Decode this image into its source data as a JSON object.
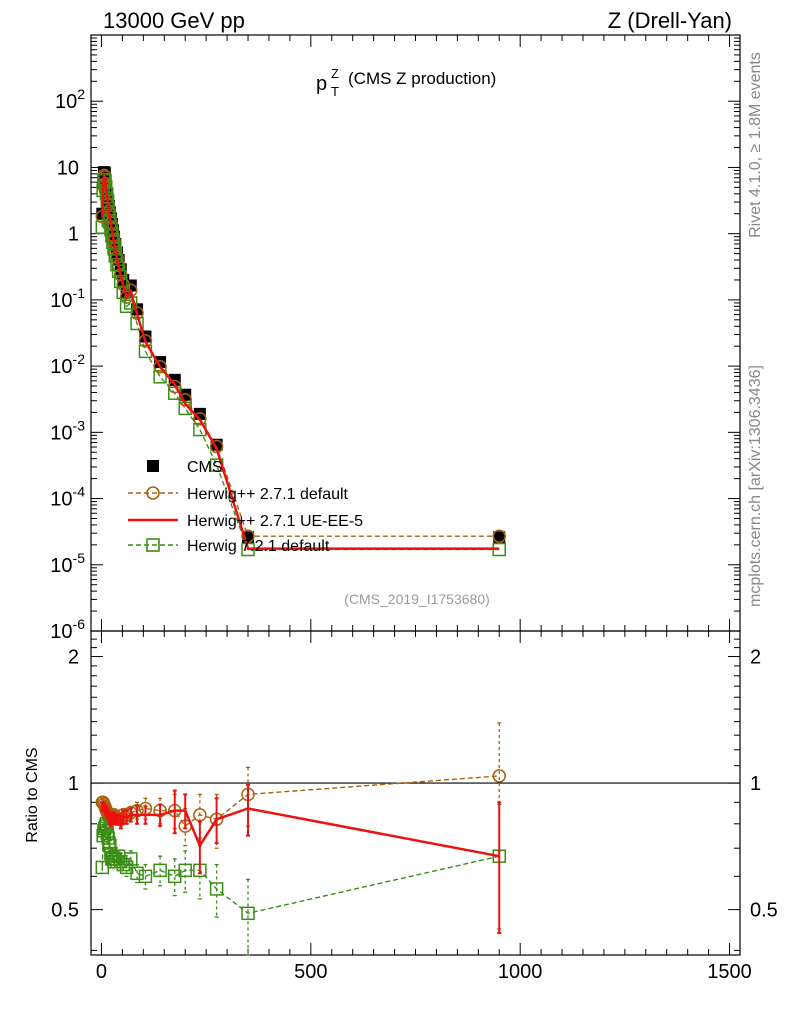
{
  "header": {
    "left_title": "13000 GeV pp",
    "right_title": "Z (Drell-Yan)"
  },
  "side_labels": {
    "rivet": "Rivet 4.1.0, ≥ 1.8M events",
    "mcplots": "mcplots.cern.ch [arXiv:1306.3436]"
  },
  "chart_data": [
    {
      "type": "scatter",
      "panel": "main",
      "title_main": "p",
      "title_sup": "Z",
      "title_sub": "T",
      "title_rest": "(CMS Z production)",
      "analysis_label": "(CMS_2019_I1753680)",
      "xscale": "linear",
      "yscale": "log",
      "xlim": [
        -25,
        1525
      ],
      "ylim": [
        1e-06,
        1000
      ],
      "y_tick_labels": [
        "10^2",
        "10",
        "1",
        "10^-1",
        "10^-2",
        "10^-3",
        "10^-4",
        "10^-5",
        "10^-6"
      ],
      "legend_position": "middle-left",
      "legend": [
        "CMS",
        "Herwig++ 2.7.1 default",
        "Herwig++ 2.7.1 UE-EE-5",
        "Herwig 7.2.1 default"
      ],
      "x": [
        2,
        4,
        6,
        8,
        10,
        12,
        14,
        16,
        18,
        20,
        22.5,
        25,
        27.5,
        30,
        33,
        37,
        41,
        46,
        52,
        60,
        70,
        85,
        105,
        140,
        175,
        200,
        235,
        275,
        350,
        950
      ],
      "series": [
        {
          "name": "CMS",
          "color": "#000000",
          "style": "filled-square",
          "values": [
            2.0,
            6.0,
            8.5,
            8.2,
            6.5,
            5.0,
            4.0,
            3.2,
            2.6,
            2.1,
            1.7,
            1.4,
            1.12,
            0.9,
            0.7,
            0.52,
            0.4,
            0.29,
            0.2,
            0.13,
            0.165,
            0.072,
            0.028,
            0.0115,
            0.0062,
            0.0037,
            0.0019,
            0.00065,
            2.6e-05,
            2.6e-05
          ]
        },
        {
          "name": "Herwig++ 2.7.1 default",
          "color": "#a8620e",
          "style": "open-circle-dashed",
          "values": [
            1.8,
            5.4,
            7.6,
            7.2,
            5.7,
            4.4,
            3.5,
            2.8,
            2.2,
            1.8,
            1.45,
            1.2,
            0.95,
            0.77,
            0.59,
            0.44,
            0.33,
            0.24,
            0.17,
            0.11,
            0.14,
            0.063,
            0.024,
            0.0098,
            0.0049,
            0.0031,
            0.0016,
            0.00061,
            2.7e-05,
            2.7e-05
          ]
        },
        {
          "name": "Herwig++ 2.7.1 UE-EE-5",
          "color": "#ee1111",
          "style": "solid-line",
          "values": [
            1.75,
            5.3,
            7.5,
            7.1,
            5.6,
            4.3,
            3.4,
            2.7,
            2.15,
            1.75,
            1.4,
            1.15,
            0.92,
            0.74,
            0.57,
            0.43,
            0.32,
            0.235,
            0.165,
            0.108,
            0.135,
            0.061,
            0.0235,
            0.0097,
            0.0053,
            0.0027,
            0.00155,
            0.00057,
            1.75e-05,
            1.75e-05
          ]
        },
        {
          "name": "Herwig 7.2.1 default",
          "color": "#3a8e16",
          "style": "open-square-dashed",
          "values": [
            1.25,
            4.5,
            6.5,
            6.3,
            5.1,
            4.0,
            3.1,
            2.4,
            1.9,
            1.5,
            1.15,
            0.92,
            0.74,
            0.59,
            0.46,
            0.34,
            0.27,
            0.19,
            0.13,
            0.08,
            0.09,
            0.044,
            0.0167,
            0.0069,
            0.0039,
            0.0023,
            0.0011,
            0.00032,
            1.7e-05,
            1.7e-05
          ]
        }
      ]
    },
    {
      "type": "line",
      "panel": "ratio",
      "ylabel": "Ratio to CMS",
      "yscale": "log",
      "ylim": [
        0.39,
        2.3
      ],
      "xlim": [
        -25,
        1525
      ],
      "x_tick_labels": [
        "0",
        "500",
        "1000",
        "1500"
      ],
      "y_tick_labels": [
        "0.5",
        "1",
        "2"
      ],
      "reference": 1.0,
      "x": [
        2,
        4,
        6,
        8,
        10,
        12,
        14,
        16,
        18,
        20,
        22.5,
        25,
        27.5,
        30,
        33,
        37,
        41,
        46,
        52,
        60,
        70,
        85,
        105,
        140,
        175,
        200,
        235,
        275,
        350,
        950
      ],
      "series": [
        {
          "name": "Herwig++ 2.7.1 default",
          "color": "#a8620e",
          "values": [
            0.9,
            0.9,
            0.89,
            0.88,
            0.87,
            0.86,
            0.85,
            0.84,
            0.83,
            0.82,
            0.82,
            0.83,
            0.84,
            0.84,
            0.83,
            0.82,
            0.82,
            0.82,
            0.84,
            0.84,
            0.85,
            0.86,
            0.87,
            0.86,
            0.86,
            0.79,
            0.84,
            0.82,
            0.94,
            1.04
          ],
          "err": [
            0.02,
            0.02,
            0.02,
            0.02,
            0.02,
            0.02,
            0.02,
            0.02,
            0.02,
            0.02,
            0.02,
            0.02,
            0.02,
            0.02,
            0.02,
            0.02,
            0.02,
            0.03,
            0.03,
            0.03,
            0.03,
            0.04,
            0.05,
            0.06,
            0.08,
            0.08,
            0.1,
            0.12,
            0.15,
            0.35
          ]
        },
        {
          "name": "Herwig++ 2.7.1 UE-EE-5",
          "color": "#ee1111",
          "values": [
            0.88,
            0.88,
            0.88,
            0.87,
            0.86,
            0.86,
            0.85,
            0.84,
            0.83,
            0.82,
            0.81,
            0.82,
            0.83,
            0.83,
            0.82,
            0.82,
            0.82,
            0.81,
            0.83,
            0.83,
            0.84,
            0.84,
            0.84,
            0.84,
            0.86,
            0.86,
            0.71,
            0.82,
            0.87,
            0.67
          ],
          "err": [
            0.02,
            0.02,
            0.02,
            0.02,
            0.02,
            0.02,
            0.02,
            0.02,
            0.02,
            0.02,
            0.02,
            0.02,
            0.02,
            0.02,
            0.02,
            0.02,
            0.02,
            0.03,
            0.03,
            0.03,
            0.03,
            0.04,
            0.04,
            0.05,
            0.1,
            0.08,
            0.1,
            0.1,
            0.12,
            0.23
          ]
        },
        {
          "name": "Herwig 7.2.1 default",
          "color": "#3a8e16",
          "values": [
            0.63,
            0.75,
            0.77,
            0.78,
            0.79,
            0.8,
            0.76,
            0.74,
            0.72,
            0.71,
            0.68,
            0.66,
            0.66,
            0.65,
            0.66,
            0.65,
            0.67,
            0.65,
            0.64,
            0.63,
            0.66,
            0.61,
            0.6,
            0.62,
            0.6,
            0.62,
            0.62,
            0.56,
            0.49,
            0.67
          ],
          "err": [
            0.02,
            0.02,
            0.02,
            0.02,
            0.02,
            0.02,
            0.02,
            0.02,
            0.02,
            0.02,
            0.02,
            0.02,
            0.02,
            0.02,
            0.02,
            0.02,
            0.02,
            0.03,
            0.03,
            0.03,
            0.03,
            0.03,
            0.04,
            0.05,
            0.06,
            0.07,
            0.09,
            0.08,
            0.1,
            0.22
          ]
        }
      ]
    }
  ]
}
